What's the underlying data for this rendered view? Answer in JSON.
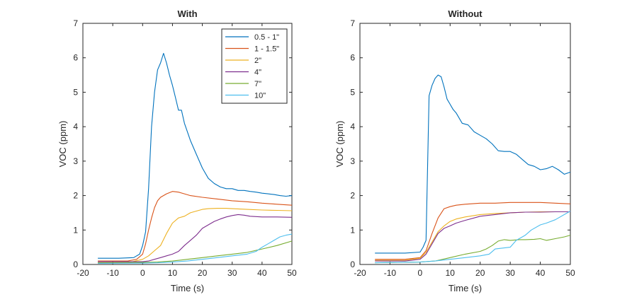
{
  "chart_data": [
    {
      "type": "line",
      "title": "With",
      "xlabel": "Time (s)",
      "ylabel": "VOC (ppm)",
      "xlim": [
        -20,
        50
      ],
      "ylim": [
        0,
        7
      ],
      "xticks": [
        -20,
        -10,
        0,
        10,
        20,
        30,
        40,
        50
      ],
      "yticks": [
        0,
        1,
        2,
        3,
        4,
        5,
        6,
        7
      ],
      "legend": "top-right",
      "series": [
        {
          "name": "0.5 - 1\"",
          "color": "#0072BD",
          "x": [
            -15,
            -8,
            -3,
            -1,
            0,
            1,
            2,
            3,
            4,
            5,
            6,
            7,
            8,
            9,
            10,
            11,
            12,
            13,
            14,
            16,
            18,
            20,
            22,
            24,
            26,
            28,
            30,
            32,
            34,
            36,
            38,
            40,
            42,
            44,
            46,
            48,
            50
          ],
          "y": [
            0.18,
            0.18,
            0.2,
            0.3,
            0.55,
            0.95,
            2.2,
            4.0,
            5.0,
            5.65,
            5.85,
            6.13,
            5.85,
            5.5,
            5.2,
            4.85,
            4.48,
            4.48,
            4.1,
            3.6,
            3.2,
            2.8,
            2.5,
            2.35,
            2.25,
            2.2,
            2.2,
            2.15,
            2.15,
            2.12,
            2.1,
            2.07,
            2.05,
            2.03,
            2.0,
            1.98,
            2.0
          ]
        },
        {
          "name": "1 - 1.5\"",
          "color": "#D95319",
          "x": [
            -15,
            -5,
            -2,
            0,
            1,
            2,
            3,
            4,
            5,
            6,
            8,
            10,
            12,
            14,
            16,
            20,
            25,
            30,
            35,
            40,
            45,
            50
          ],
          "y": [
            0.1,
            0.1,
            0.15,
            0.3,
            0.6,
            1.0,
            1.35,
            1.65,
            1.85,
            1.95,
            2.05,
            2.12,
            2.1,
            2.05,
            2.0,
            1.95,
            1.9,
            1.85,
            1.82,
            1.78,
            1.75,
            1.72
          ]
        },
        {
          "name": "2\"",
          "color": "#EDB120",
          "x": [
            -15,
            -5,
            0,
            2,
            4,
            6,
            8,
            10,
            12,
            14,
            16,
            18,
            20,
            22,
            25,
            28,
            30,
            35,
            40,
            45,
            50
          ],
          "y": [
            0.05,
            0.05,
            0.15,
            0.25,
            0.4,
            0.55,
            0.9,
            1.2,
            1.35,
            1.4,
            1.5,
            1.55,
            1.6,
            1.62,
            1.63,
            1.63,
            1.62,
            1.6,
            1.58,
            1.57,
            1.56
          ]
        },
        {
          "name": "4\"",
          "color": "#7E2F8E",
          "x": [
            -15,
            0,
            2,
            4,
            6,
            8,
            10,
            12,
            14,
            16,
            18,
            20,
            22,
            24,
            26,
            28,
            30,
            32,
            34,
            36,
            40,
            45,
            50
          ],
          "y": [
            0.08,
            0.08,
            0.1,
            0.15,
            0.2,
            0.25,
            0.3,
            0.38,
            0.55,
            0.7,
            0.85,
            1.05,
            1.15,
            1.25,
            1.32,
            1.38,
            1.42,
            1.45,
            1.43,
            1.4,
            1.38,
            1.38,
            1.37
          ]
        },
        {
          "name": "7\"",
          "color": "#77AC30",
          "x": [
            -15,
            0,
            5,
            10,
            15,
            20,
            25,
            30,
            35,
            40,
            45,
            50
          ],
          "y": [
            0.05,
            0.06,
            0.07,
            0.1,
            0.15,
            0.2,
            0.25,
            0.3,
            0.35,
            0.45,
            0.55,
            0.68
          ]
        },
        {
          "name": "10\"",
          "color": "#4DBEEE",
          "x": [
            -15,
            0,
            5,
            10,
            15,
            20,
            25,
            30,
            35,
            38,
            40,
            42,
            44,
            46,
            48,
            50
          ],
          "y": [
            0.03,
            0.04,
            0.05,
            0.07,
            0.1,
            0.15,
            0.2,
            0.25,
            0.3,
            0.38,
            0.5,
            0.6,
            0.7,
            0.8,
            0.85,
            0.88
          ]
        }
      ]
    },
    {
      "type": "line",
      "title": "Without",
      "xlabel": "Time (s)",
      "ylabel": "VOC (ppm)",
      "xlim": [
        -20,
        50
      ],
      "ylim": [
        0,
        7
      ],
      "xticks": [
        -20,
        -10,
        0,
        10,
        20,
        30,
        40,
        50
      ],
      "yticks": [
        0,
        1,
        2,
        3,
        4,
        5,
        6,
        7
      ],
      "series": [
        {
          "name": "0.5 - 1\"",
          "color": "#0072BD",
          "x": [
            -15,
            -5,
            0,
            1,
            2,
            3,
            4,
            5,
            6,
            7,
            8,
            9,
            10,
            11,
            12,
            14,
            16,
            18,
            20,
            22,
            24,
            26,
            28,
            30,
            32,
            34,
            36,
            38,
            40,
            42,
            44,
            46,
            48,
            50
          ],
          "y": [
            0.33,
            0.33,
            0.36,
            0.5,
            0.7,
            4.9,
            5.2,
            5.4,
            5.5,
            5.45,
            5.15,
            4.8,
            4.65,
            4.5,
            4.4,
            4.1,
            4.05,
            3.85,
            3.75,
            3.65,
            3.5,
            3.3,
            3.28,
            3.28,
            3.2,
            3.05,
            2.9,
            2.85,
            2.75,
            2.78,
            2.85,
            2.75,
            2.62,
            2.68
          ]
        },
        {
          "name": "1 - 1.5\"",
          "color": "#D95319",
          "x": [
            -15,
            -5,
            0,
            2,
            4,
            6,
            8,
            10,
            12,
            15,
            20,
            25,
            30,
            35,
            40,
            45,
            50
          ],
          "y": [
            0.15,
            0.15,
            0.2,
            0.4,
            0.9,
            1.35,
            1.62,
            1.68,
            1.72,
            1.75,
            1.78,
            1.78,
            1.8,
            1.8,
            1.8,
            1.78,
            1.76
          ]
        },
        {
          "name": "2\"",
          "color": "#EDB120",
          "x": [
            -15,
            -5,
            0,
            2,
            4,
            6,
            8,
            10,
            12,
            15,
            18,
            20,
            25,
            30,
            35,
            40,
            45,
            50
          ],
          "y": [
            0.12,
            0.12,
            0.18,
            0.35,
            0.65,
            0.95,
            1.12,
            1.25,
            1.32,
            1.38,
            1.42,
            1.45,
            1.48,
            1.5,
            1.52,
            1.53,
            1.53,
            1.53
          ]
        },
        {
          "name": "4\"",
          "color": "#7E2F8E",
          "x": [
            -15,
            -5,
            0,
            2,
            4,
            6,
            8,
            10,
            12,
            15,
            18,
            20,
            25,
            30,
            35,
            40,
            45,
            50
          ],
          "y": [
            0.1,
            0.1,
            0.15,
            0.3,
            0.6,
            0.9,
            1.05,
            1.12,
            1.2,
            1.28,
            1.35,
            1.4,
            1.45,
            1.5,
            1.52,
            1.52,
            1.53,
            1.53
          ]
        },
        {
          "name": "7\"",
          "color": "#77AC30",
          "x": [
            -15,
            0,
            5,
            10,
            15,
            20,
            22,
            24,
            26,
            28,
            30,
            33,
            35,
            38,
            40,
            42,
            45,
            48,
            50
          ],
          "y": [
            0.05,
            0.07,
            0.1,
            0.2,
            0.3,
            0.38,
            0.45,
            0.55,
            0.68,
            0.72,
            0.7,
            0.72,
            0.72,
            0.73,
            0.75,
            0.7,
            0.75,
            0.8,
            0.85
          ]
        },
        {
          "name": "10\"",
          "color": "#4DBEEE",
          "x": [
            -15,
            0,
            5,
            10,
            15,
            20,
            23,
            25,
            28,
            30,
            32,
            35,
            37,
            40,
            42,
            45,
            48,
            50
          ],
          "y": [
            0.05,
            0.07,
            0.1,
            0.15,
            0.2,
            0.25,
            0.3,
            0.45,
            0.48,
            0.5,
            0.7,
            0.85,
            1.0,
            1.15,
            1.2,
            1.3,
            1.45,
            1.55
          ]
        }
      ]
    }
  ]
}
